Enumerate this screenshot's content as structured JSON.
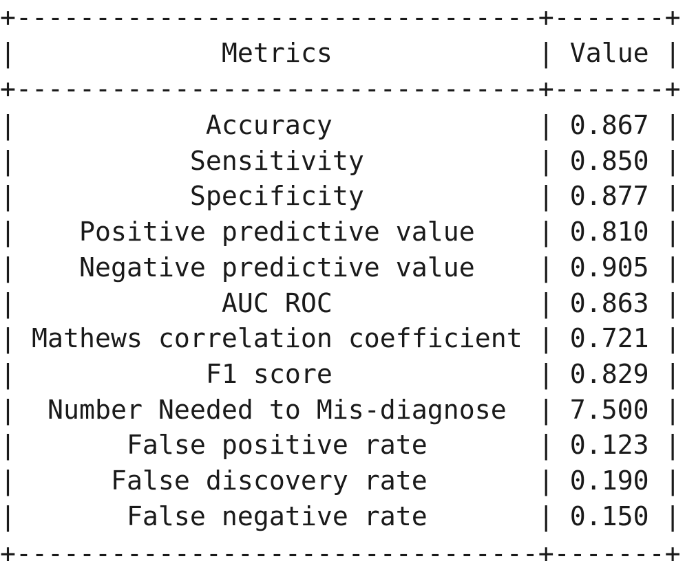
{
  "table": {
    "header": {
      "metric": "Metrics",
      "value": "Value"
    },
    "rows": [
      {
        "metric": "Accuracy",
        "value": "0.867"
      },
      {
        "metric": "Sensitivity",
        "value": "0.850"
      },
      {
        "metric": "Specificity",
        "value": "0.877"
      },
      {
        "metric": "Positive predictive value",
        "value": "0.810"
      },
      {
        "metric": "Negative predictive value",
        "value": "0.905"
      },
      {
        "metric": "AUC ROC",
        "value": "0.863"
      },
      {
        "metric": "Mathews correlation coefficient",
        "value": "0.721"
      },
      {
        "metric": "F1 score",
        "value": "0.829"
      },
      {
        "metric": "Number Needed to Mis-diagnose",
        "value": "7.500"
      },
      {
        "metric": "False positive rate",
        "value": "0.123"
      },
      {
        "metric": "False discovery rate",
        "value": "0.190"
      },
      {
        "metric": "False negative rate",
        "value": "0.150"
      }
    ]
  }
}
